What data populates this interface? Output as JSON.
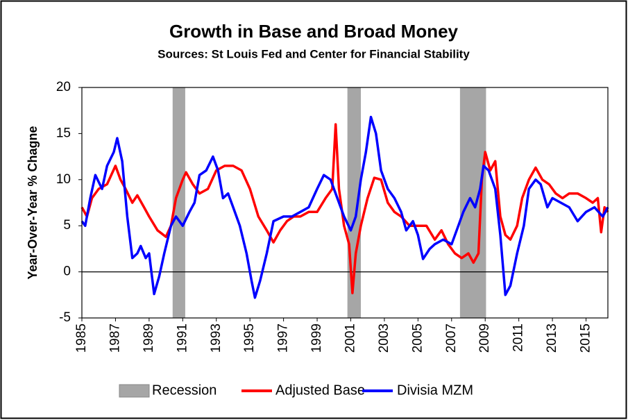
{
  "chart_data": {
    "type": "line",
    "title": "Growth in Base and Broad Money",
    "subtitle": "Sources: St Louis Fed and Center for Financial Stability",
    "y_label": "Year-Over-Year % Chagne",
    "xlim": [
      1985,
      2016.3
    ],
    "xticks": [
      1985,
      1987,
      1989,
      1991,
      1993,
      1995,
      1997,
      1999,
      2001,
      2003,
      2005,
      2007,
      2009,
      2011,
      2013,
      2015
    ],
    "ylim": [
      -5,
      20
    ],
    "yticks": [
      -5,
      0,
      5,
      10,
      15,
      20
    ],
    "hline": 0,
    "recessions": {
      "name": "Recession",
      "color": "#a6a6a6",
      "ranges": [
        [
          1990.4,
          1991.15
        ],
        [
          2000.8,
          2001.6
        ],
        [
          2007.5,
          2009.05
        ]
      ]
    },
    "series": [
      {
        "name": "Adjusted Base",
        "color": "#ff0000",
        "x": [
          1985,
          1985.3,
          1985.6,
          1986,
          1986.5,
          1987,
          1987.3,
          1987.6,
          1988,
          1988.3,
          1988.7,
          1989,
          1989.5,
          1990,
          1990.3,
          1990.6,
          1991,
          1991.2,
          1991.6,
          1992,
          1992.5,
          1993,
          1993.5,
          1994,
          1994.5,
          1995,
          1995.5,
          1996,
          1996.4,
          1996.8,
          1997.2,
          1997.6,
          1998,
          1998.5,
          1999,
          1999.5,
          1999.9,
          2000.1,
          2000.3,
          2000.6,
          2000.9,
          2001.1,
          2001.3,
          2001.6,
          2002,
          2002.4,
          2002.8,
          2003.2,
          2003.6,
          2004,
          2004.5,
          2005,
          2005.5,
          2006,
          2006.4,
          2006.8,
          2007.2,
          2007.6,
          2008,
          2008.3,
          2008.6,
          2008.8,
          2009,
          2009.3,
          2009.6,
          2009.9,
          2010.2,
          2010.5,
          2010.9,
          2011.2,
          2011.6,
          2012,
          2012.4,
          2012.8,
          2013.2,
          2013.6,
          2014,
          2014.5,
          2015,
          2015.4,
          2015.7,
          2015.9,
          2016.1,
          2016.3
        ],
        "values": [
          7,
          6,
          8,
          9,
          9.5,
          11.5,
          10,
          9,
          7.5,
          8.3,
          7,
          6,
          4.5,
          3.8,
          5,
          8,
          10,
          10.8,
          9.5,
          8.5,
          9,
          11,
          11.5,
          11.5,
          11,
          9,
          6,
          4.5,
          3.2,
          4.5,
          5.5,
          6,
          6,
          6.5,
          6.5,
          8,
          9,
          16,
          9,
          5,
          3,
          -2.3,
          2,
          5,
          8,
          10.2,
          10,
          7.5,
          6.5,
          6,
          5,
          5,
          5,
          3.5,
          4.5,
          3,
          2,
          1.5,
          2,
          1,
          2,
          10,
          13,
          11,
          12,
          6,
          4,
          3.5,
          5,
          8,
          10,
          11.3,
          10,
          9.5,
          8.5,
          8,
          8.5,
          8.5,
          8,
          7.5,
          8,
          4.3,
          7,
          6.5
        ]
      },
      {
        "name": "Divisia MZM",
        "color": "#0000ff",
        "x": [
          1985,
          1985.2,
          1985.5,
          1985.8,
          1986.2,
          1986.5,
          1986.9,
          1987.1,
          1987.4,
          1987.7,
          1988,
          1988.3,
          1988.5,
          1988.8,
          1989,
          1989.3,
          1989.6,
          1989.9,
          1990.3,
          1990.6,
          1991,
          1991.4,
          1991.7,
          1992,
          1992.4,
          1992.8,
          1993.1,
          1993.4,
          1993.7,
          1994,
          1994.4,
          1994.8,
          1995.1,
          1995.3,
          1995.6,
          1996,
          1996.4,
          1997,
          1997.5,
          1998,
          1998.5,
          1999,
          1999.4,
          1999.8,
          2000.2,
          2000.6,
          2001,
          2001.3,
          2001.6,
          2001.9,
          2002.2,
          2002.5,
          2002.8,
          2003.2,
          2003.6,
          2004,
          2004.3,
          2004.7,
          2005,
          2005.3,
          2005.7,
          2006,
          2006.5,
          2007,
          2007.4,
          2007.7,
          2008.1,
          2008.4,
          2008.7,
          2008.9,
          2009.2,
          2009.6,
          2009.9,
          2010.2,
          2010.5,
          2010.9,
          2011.3,
          2011.6,
          2012,
          2012.3,
          2012.7,
          2013,
          2013.5,
          2014,
          2014.5,
          2015,
          2015.5,
          2016,
          2016.3
        ],
        "values": [
          5.5,
          5,
          8,
          10.5,
          9,
          11.5,
          13,
          14.5,
          12,
          6,
          1.5,
          2,
          2.8,
          1.5,
          2,
          -2.4,
          -0.5,
          2,
          5,
          6,
          5,
          6.5,
          7.5,
          10.5,
          11,
          12.5,
          11,
          8,
          8.5,
          7,
          5,
          2,
          -1,
          -2.8,
          -1,
          2,
          5.5,
          6,
          6,
          6.5,
          7,
          9,
          10.5,
          10,
          8,
          6,
          4.5,
          6,
          10,
          13,
          16.8,
          15,
          11,
          9,
          8,
          6.5,
          4.5,
          5.5,
          4,
          1.4,
          2.5,
          3,
          3.5,
          3,
          5,
          6.5,
          8,
          7,
          9,
          11.5,
          11,
          9,
          4,
          -2.5,
          -1.5,
          2,
          5,
          9,
          10,
          9.5,
          7,
          8,
          7.5,
          7,
          5.5,
          6.5,
          7,
          6,
          7
        ]
      }
    ]
  }
}
